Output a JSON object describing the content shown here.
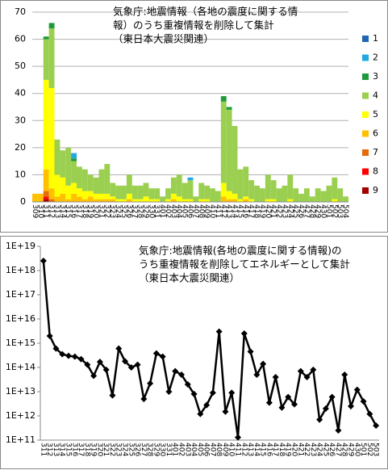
{
  "chart_data": [
    {
      "type": "stacked_bar",
      "title": [
        "気象庁:地震情報（各地の震度に関する情",
        "報）のうち重複情報を削除して集計",
        "（東日本大震災関連）"
      ],
      "categories": [
        "309",
        "310",
        "311",
        "312",
        "313",
        "314",
        "315",
        "316",
        "317",
        "318",
        "319",
        "320",
        "321",
        "322",
        "323",
        "324",
        "325",
        "326",
        "327",
        "328",
        "329",
        "330",
        "331",
        "401",
        "402",
        "403",
        "404",
        "405",
        "406",
        "407",
        "408",
        "409",
        "410",
        "411",
        "412",
        "413",
        "414",
        "415",
        "416",
        "417",
        "418",
        "419",
        "420",
        "421",
        "422",
        "423",
        "424",
        "425",
        "426",
        "427",
        "428",
        "429",
        "430",
        "501",
        "502",
        "503",
        "504"
      ],
      "ylim": [
        0,
        70
      ],
      "yticks": [
        0,
        10,
        20,
        30,
        40,
        50,
        60,
        70
      ],
      "grid": true,
      "legend": "right",
      "series": [
        {
          "name": "9",
          "color": "#a50000",
          "values": [
            0,
            0,
            1,
            0,
            0,
            0,
            0,
            0,
            0,
            0,
            0,
            0,
            0,
            0,
            0,
            0,
            0,
            0,
            0,
            0,
            0,
            0,
            0,
            0,
            0,
            0,
            0,
            0,
            0,
            0,
            0,
            0,
            0,
            0,
            0,
            0,
            0,
            0,
            0,
            0,
            0,
            0,
            0,
            0,
            0,
            0,
            0,
            0,
            0,
            0,
            0,
            0,
            0,
            0,
            0,
            0,
            0
          ]
        },
        {
          "name": "8",
          "color": "#ff0000",
          "values": [
            0,
            0,
            1,
            0,
            0,
            0,
            0,
            0,
            0,
            0,
            0,
            0,
            0,
            0,
            0,
            0,
            0,
            0,
            0,
            0,
            0,
            0,
            0,
            0,
            0,
            0,
            0,
            0,
            0,
            0,
            0,
            0,
            0,
            0,
            0,
            0,
            0,
            0,
            0,
            0,
            0,
            0,
            0,
            0,
            0,
            0,
            0,
            0,
            0,
            0,
            0,
            0,
            0,
            0,
            0,
            0,
            0
          ]
        },
        {
          "name": "7",
          "color": "#e46c0a",
          "values": [
            0,
            0,
            2,
            1,
            0,
            0,
            0,
            0,
            0,
            0,
            0,
            0,
            0,
            0,
            0,
            0,
            0,
            0,
            0,
            0,
            0,
            0,
            0,
            0,
            0,
            0,
            0,
            0,
            0,
            0,
            0,
            0,
            0,
            0,
            0,
            0,
            0,
            0,
            0,
            0,
            0,
            0,
            0,
            0,
            0,
            0,
            0,
            0,
            0,
            0,
            0,
            0,
            0,
            0,
            0,
            0,
            0
          ]
        },
        {
          "name": "6",
          "color": "#ffc000",
          "values": [
            3,
            3,
            8,
            4,
            2,
            3,
            1,
            3,
            2,
            1,
            2,
            1,
            1,
            1,
            1,
            0,
            0,
            1,
            0,
            0,
            0,
            0,
            0,
            0,
            0,
            1,
            0,
            0,
            0,
            0,
            0,
            0,
            0,
            0,
            2,
            1,
            1,
            0,
            1,
            0,
            0,
            0,
            0,
            0,
            0,
            0,
            0,
            0,
            0,
            0,
            0,
            0,
            0,
            0,
            0,
            0,
            0
          ]
        },
        {
          "name": "5",
          "color": "#ffff00",
          "values": [
            0,
            0,
            33,
            37,
            8,
            6,
            5,
            4,
            3,
            3,
            2,
            2,
            2,
            2,
            1,
            1,
            1,
            2,
            1,
            1,
            2,
            1,
            1,
            0,
            1,
            2,
            2,
            1,
            1,
            0,
            1,
            1,
            0,
            0,
            5,
            3,
            2,
            1,
            1,
            1,
            0,
            0,
            1,
            1,
            0,
            0,
            1,
            0,
            0,
            0,
            0,
            0,
            0,
            0,
            1,
            0,
            0
          ]
        },
        {
          "name": "4",
          "color": "#9bcf50",
          "values": [
            0,
            0,
            15,
            22,
            13,
            10,
            14,
            8,
            8,
            8,
            6,
            6,
            9,
            11,
            5,
            5,
            5,
            7,
            5,
            5,
            5,
            4,
            4,
            2,
            4,
            6,
            8,
            6,
            7,
            2,
            6,
            5,
            5,
            4,
            30,
            30,
            25,
            11,
            11,
            7,
            6,
            5,
            9,
            7,
            5,
            6,
            9,
            5,
            3,
            5,
            2,
            5,
            4,
            6,
            8,
            5,
            2
          ]
        },
        {
          "name": "3",
          "color": "#1e9a3c",
          "values": [
            0,
            0,
            1,
            2,
            0,
            0,
            0,
            1,
            0,
            0,
            0,
            0,
            0,
            0,
            0,
            0,
            0,
            0,
            0,
            0,
            0,
            0,
            0,
            0,
            0,
            0,
            0,
            0,
            0,
            0,
            0,
            0,
            0,
            0,
            2,
            1,
            0,
            0,
            0,
            0,
            0,
            0,
            0,
            0,
            0,
            0,
            0,
            0,
            0,
            0,
            0,
            0,
            0,
            0,
            0,
            0,
            0
          ]
        },
        {
          "name": "2",
          "color": "#22a8e0",
          "values": [
            0,
            0,
            0,
            0,
            0,
            0,
            0,
            2,
            0,
            0,
            0,
            0,
            0,
            0,
            0,
            0,
            0,
            0,
            0,
            0,
            0,
            0,
            0,
            0,
            0,
            0,
            0,
            0,
            1,
            0,
            0,
            0,
            0,
            0,
            0,
            0,
            0,
            0,
            0,
            0,
            0,
            0,
            0,
            0,
            0,
            0,
            0,
            0,
            0,
            0,
            0,
            0,
            0,
            0,
            0,
            0,
            0
          ]
        },
        {
          "name": "1",
          "color": "#2066b0",
          "values": [
            0,
            0,
            0,
            0,
            0,
            0,
            0,
            0,
            0,
            0,
            0,
            0,
            0,
            0,
            0,
            0,
            0,
            0,
            0,
            0,
            0,
            0,
            0,
            0,
            0,
            0,
            0,
            0,
            0,
            0,
            0,
            0,
            0,
            0,
            0,
            0,
            0,
            0,
            0,
            0,
            0,
            0,
            0,
            0,
            0,
            0,
            0,
            0,
            0,
            0,
            0,
            0,
            0,
            0,
            0,
            0,
            0
          ]
        }
      ]
    },
    {
      "type": "line",
      "title": [
        "気象庁:地震情報(各地の震度に関する情報)の",
        "うち重複情報を削除してエネルギーとして集計",
        "（東日本大震災関連）"
      ],
      "categories": [
        "311",
        "312",
        "313",
        "314",
        "315",
        "316",
        "317",
        "318",
        "319",
        "320",
        "321",
        "322",
        "323",
        "324",
        "325",
        "326",
        "327",
        "328",
        "329",
        "330",
        "331",
        "401",
        "402",
        "403",
        "404",
        "405",
        "406",
        "407",
        "408",
        "409",
        "410",
        "411",
        "412",
        "413",
        "414",
        "415",
        "416",
        "417",
        "418",
        "419",
        "420",
        "421",
        "422",
        "423",
        "424",
        "425",
        "426",
        "427",
        "428",
        "429",
        "430",
        "501",
        "502",
        "503"
      ],
      "log_scale": true,
      "color": "#000000",
      "ylim": [
        100000000000.0,
        1e+19
      ],
      "yticks": [
        {
          "value": 100000000000.0,
          "label": "1E+11"
        },
        {
          "value": 1000000000000.0,
          "label": "1E+12"
        },
        {
          "value": 10000000000000.0,
          "label": "1E+13"
        },
        {
          "value": 100000000000000.0,
          "label": "1E+14"
        },
        {
          "value": 1000000000000000.0,
          "label": "1E+15"
        },
        {
          "value": 1e+16,
          "label": "1E+16"
        },
        {
          "value": 1e+17,
          "label": "1E+17"
        },
        {
          "value": 1e+18,
          "label": "1E+18"
        },
        {
          "value": 1e+19,
          "label": "1E+19"
        }
      ],
      "values": [
        2.5e+18,
        2000000000000000.0,
        600000000000000.0,
        350000000000000.0,
        300000000000000.0,
        280000000000000.0,
        220000000000000.0,
        130000000000000.0,
        45000000000000.0,
        170000000000000.0,
        80000000000000.0,
        7000000000000.0,
        600000000000000.0,
        180000000000000.0,
        100000000000000.0,
        130000000000000.0,
        5000000000000.0,
        22000000000000.0,
        380000000000000.0,
        280000000000000.0,
        10000000000000.0,
        70000000000000.0,
        50000000000000.0,
        20000000000000.0,
        8000000000000.0,
        1200000000000.0,
        2800000000000.0,
        9000000000000.0,
        3000000000000000.0,
        1500000000000.0,
        9000000000000.0,
        130000000000.0,
        2500000000000000.0,
        450000000000000.0,
        50000000000000.0,
        140000000000000.0,
        3500000000000.0,
        40000000000000.0,
        2200000000000.0,
        6000000000000.0,
        3000000000000.0,
        70000000000000.0,
        40000000000000.0,
        80000000000000.0,
        700000000000.0,
        2000000000000.0,
        6000000000000.0,
        250000000000.0,
        50000000000000.0,
        2500000000000.0,
        12000000000000.0,
        4000000000000.0,
        1200000000000.0,
        400000000000.0
      ]
    }
  ]
}
